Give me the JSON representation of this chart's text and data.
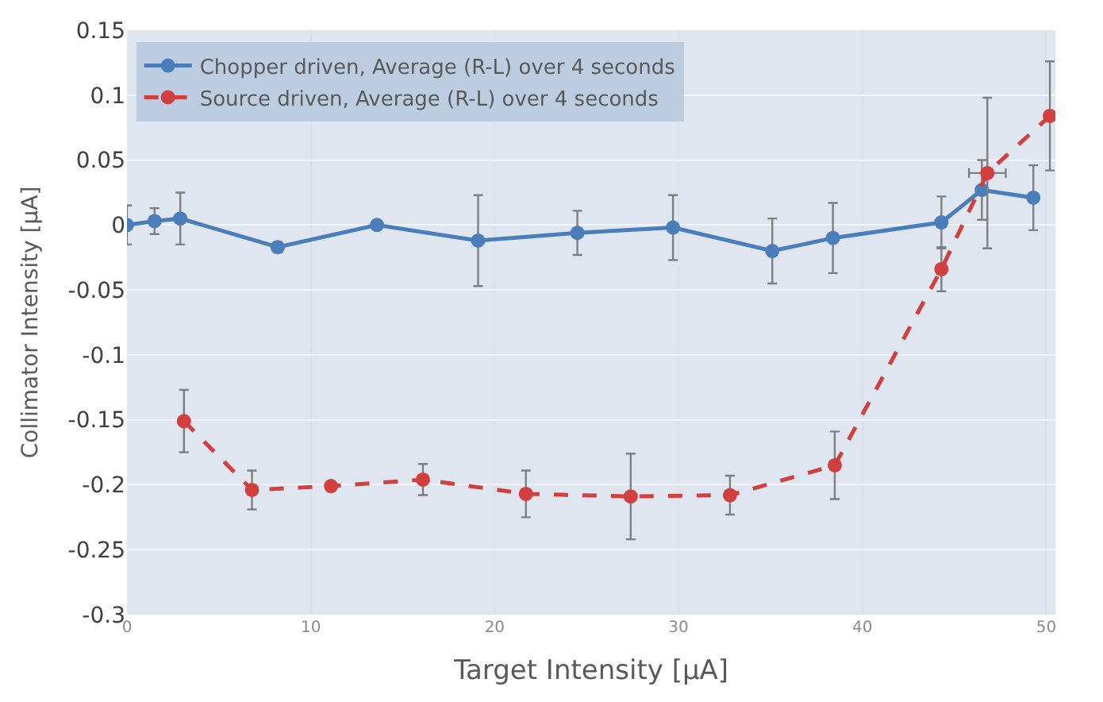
{
  "chart_data": {
    "type": "line",
    "xlabel": "Target Intensity [µA]",
    "ylabel": "Collimator Intensity [µA]",
    "xlim": [
      0,
      50.5
    ],
    "xticks": [
      0,
      10,
      20,
      30,
      40,
      50
    ],
    "ylim": [
      -0.3,
      0.15
    ],
    "yticks": [
      -0.3,
      -0.25,
      -0.2,
      -0.15,
      -0.1,
      -0.05,
      0,
      0.05,
      0.1,
      0.15
    ],
    "grid": true,
    "legend": "top left",
    "marker": "circle",
    "series": [
      {
        "name": "Chopper driven, Average (R-L) over 4 seconds",
        "color": "#4a7ebb",
        "line_style": "solid",
        "x": [
          0,
          1.5,
          2.9,
          8.2,
          13.6,
          19.1,
          24.5,
          29.7,
          35.1,
          38.4,
          44.3,
          46.5,
          49.3
        ],
        "values": [
          0,
          0.003,
          0.005,
          -0.017,
          0,
          -0.012,
          -0.006,
          -0.002,
          -0.02,
          -0.01,
          0.002,
          0.027,
          0.021
        ],
        "errors": [
          0.015,
          0.01,
          0.02,
          0.004,
          null,
          0.035,
          0.017,
          0.025,
          0.025,
          0.027,
          0.02,
          0.023,
          0.025
        ]
      },
      {
        "name": "Source driven, Average (R-L) over 4 seconds",
        "color": "#d13f3f",
        "line_style": "dashed",
        "x": [
          3.1,
          6.8,
          11.1,
          16.1,
          21.7,
          27.4,
          32.8,
          38.5,
          44.3,
          46.8,
          50.2
        ],
        "values": [
          -0.151,
          -0.204,
          -0.201,
          -0.196,
          -0.207,
          -0.209,
          -0.208,
          -0.185,
          -0.034,
          0.04,
          0.084
        ],
        "errors": [
          0.024,
          0.015,
          null,
          0.012,
          0.018,
          0.033,
          0.015,
          0.026,
          0.017,
          0.058,
          0.042
        ],
        "xerrors": [
          null,
          null,
          null,
          null,
          null,
          null,
          null,
          null,
          null,
          1,
          null
        ]
      }
    ]
  }
}
